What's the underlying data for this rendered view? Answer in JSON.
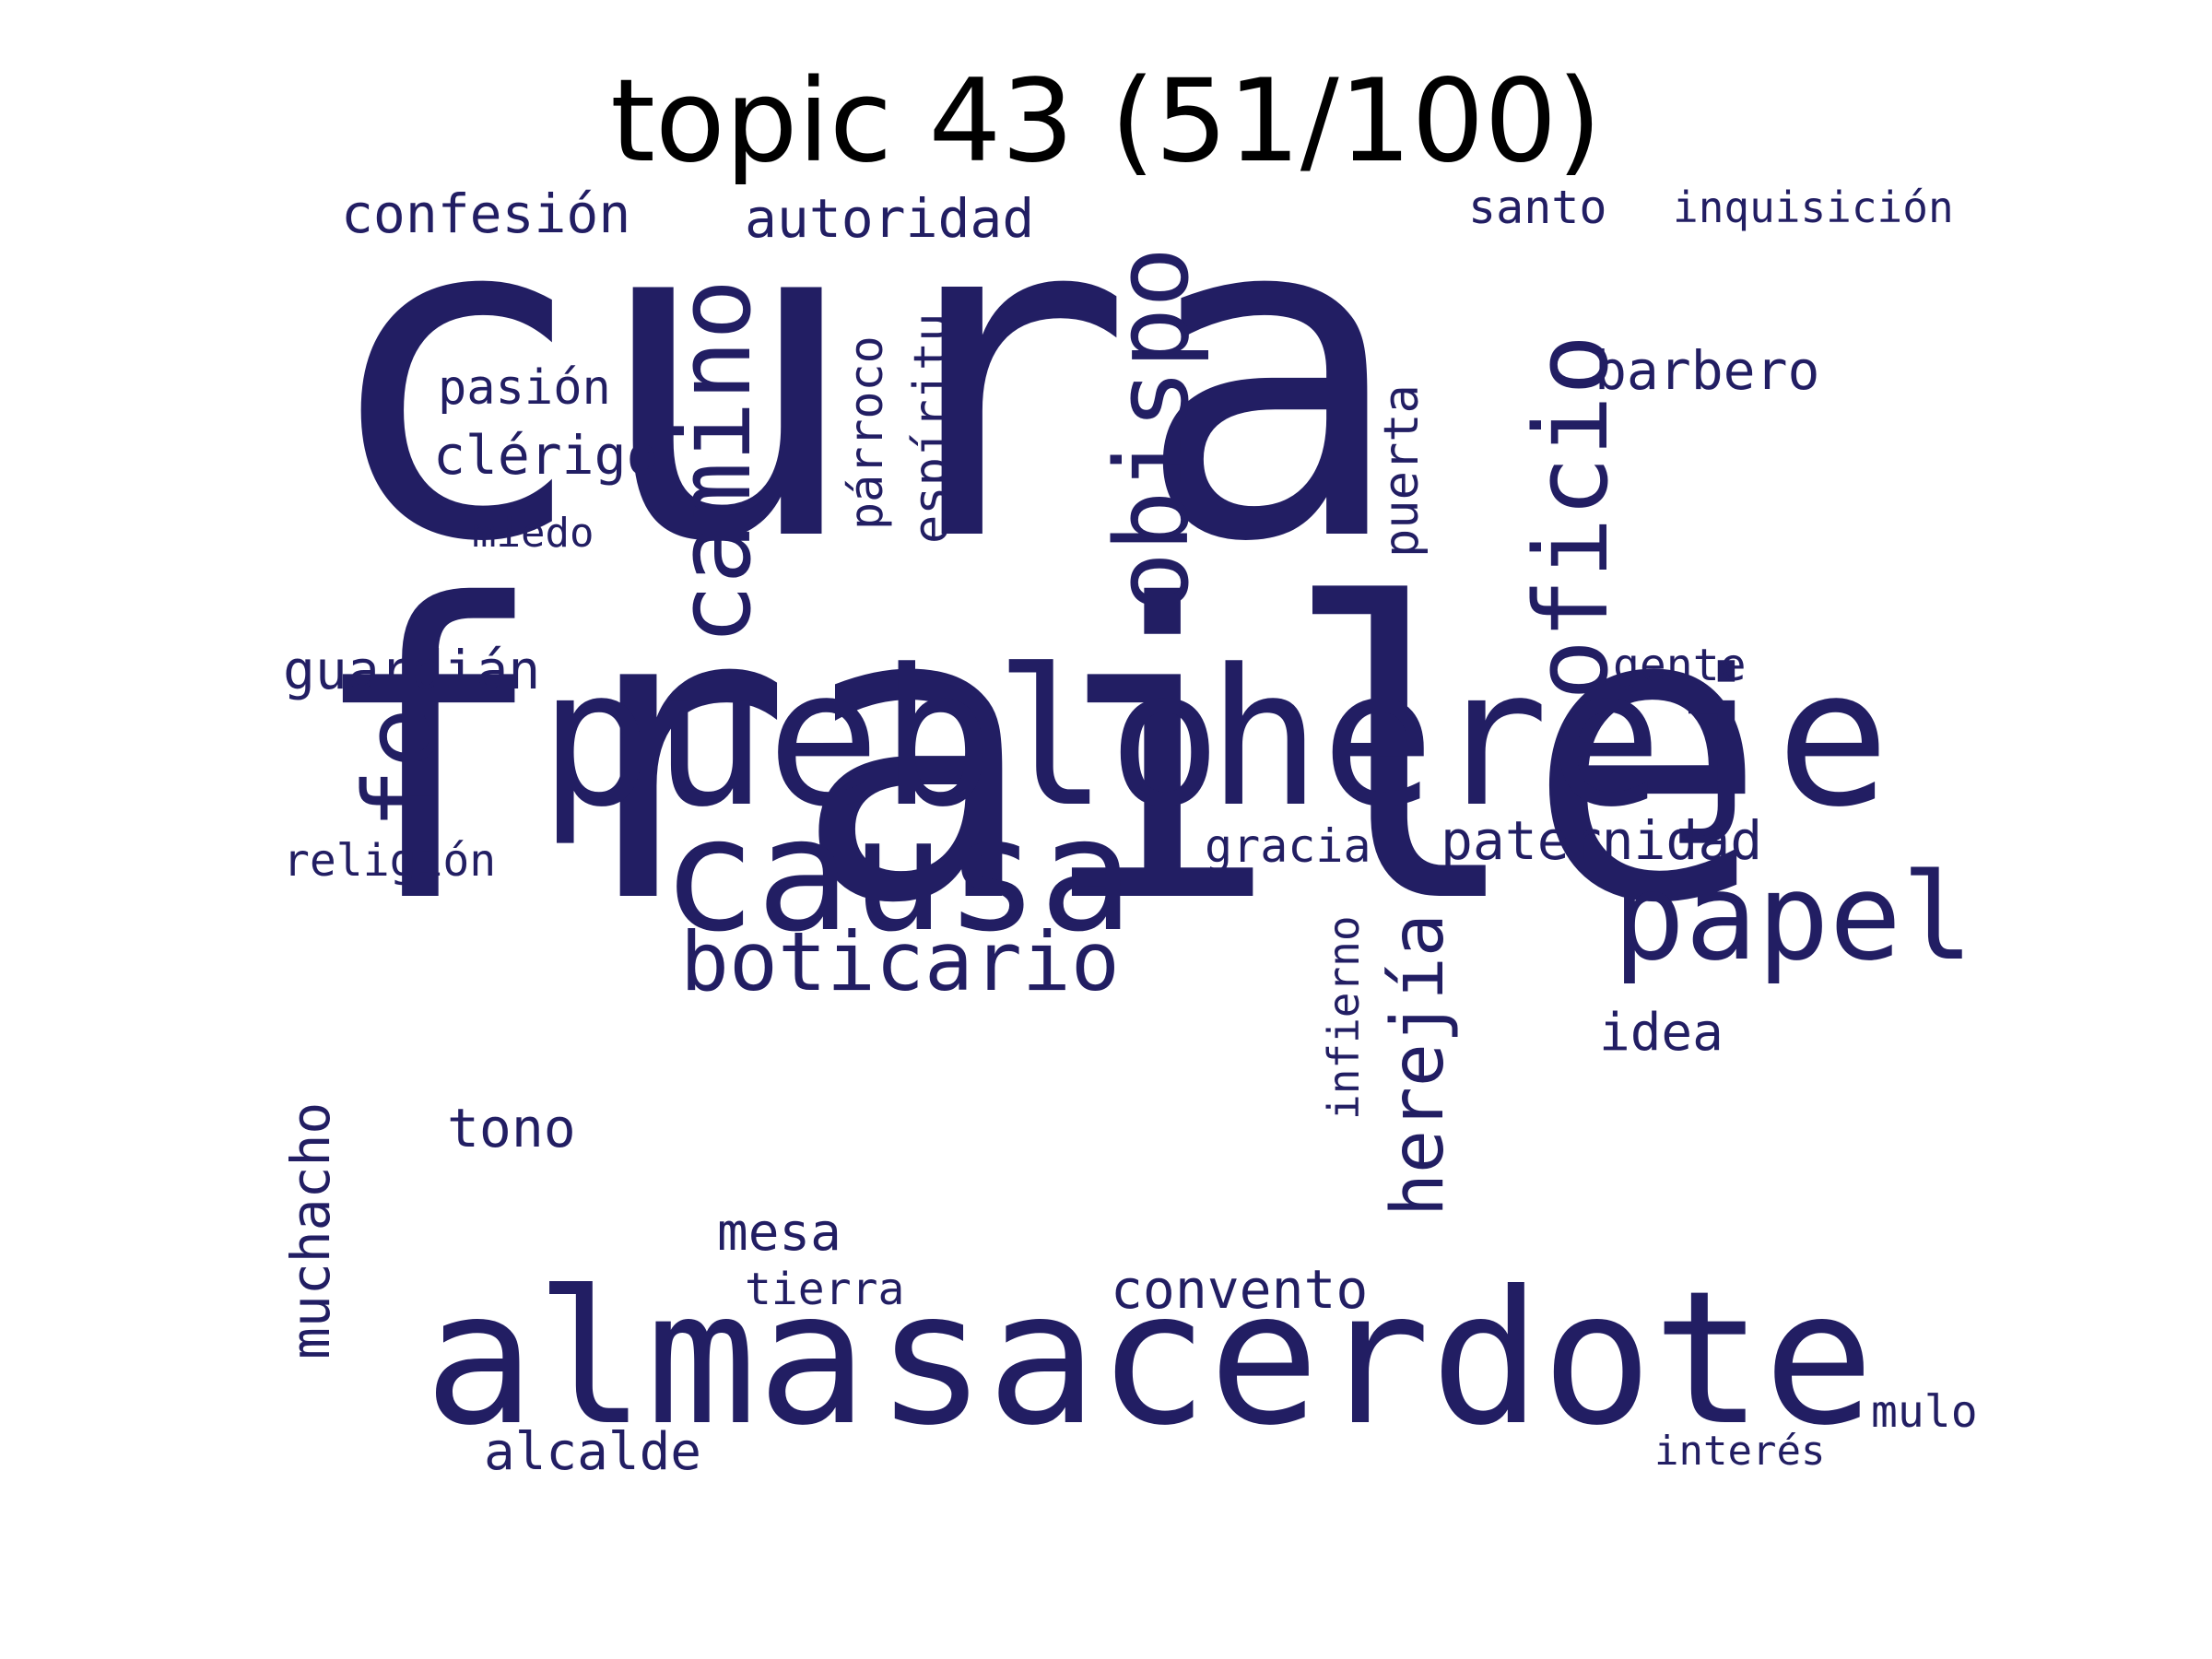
{
  "title": "topic 43 (51/100)",
  "colors": {
    "word": "#221e63",
    "title": "#000000",
    "background": "#ffffff"
  },
  "words": {
    "cura": "cura",
    "fraile": "fraile",
    "pueblo": "pueblo",
    "hereje": "hereje",
    "alma": "alma",
    "sacerdote": "sacerdote",
    "causa": "causa",
    "obispo": "obispo",
    "camino": "camino",
    "oficio": "oficio",
    "papel": "papel",
    "fe": "fe",
    "boticario": "boticario",
    "herejia": "herejía",
    "confesion": "confesión",
    "autoridad": "autoridad",
    "santo": "santo",
    "inquisicion": "inquisición",
    "barbero": "barbero",
    "pasion": "pasión",
    "clerigo": "clérigo",
    "miedo": "miedo",
    "parroco": "párroco",
    "espiritu": "espíritu",
    "puerta": "puerta",
    "guardian": "guardián",
    "gente": "gente",
    "religion": "religión",
    "gracia": "gracia",
    "paternidad": "paternidad",
    "infierno": "infierno",
    "idea": "idea",
    "tono": "tono",
    "muchacho": "muchacho",
    "mesa": "mesa",
    "tierra": "tierra",
    "convento": "convento",
    "mulo": "mulo",
    "interes": "interés",
    "alcalde": "alcalde"
  }
}
